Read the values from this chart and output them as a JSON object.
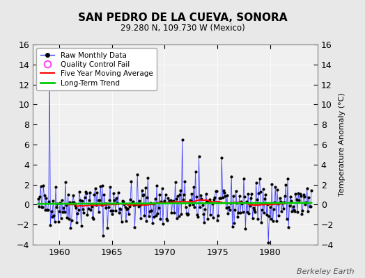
{
  "title": "SAN PEDRO DE LA CUEVA, SONORA",
  "subtitle": "29.280 N, 109.730 W (Mexico)",
  "ylabel": "Temperature Anomaly (°C)",
  "credit": "Berkeley Earth",
  "ylim": [
    -4,
    16
  ],
  "yticks": [
    -4,
    -2,
    0,
    2,
    4,
    6,
    8,
    10,
    12,
    14,
    16
  ],
  "xlim": [
    1957.5,
    1984.5
  ],
  "xticks": [
    1960,
    1965,
    1970,
    1975,
    1980
  ],
  "bg_color": "#e8e8e8",
  "plot_bg": "#f0f0f0",
  "line_color": "#4444ff",
  "marker_color": "#000000",
  "qc_color": "#ff44ff",
  "ma_color": "#ff0000",
  "trend_color": "#00cc00",
  "seed": 42
}
